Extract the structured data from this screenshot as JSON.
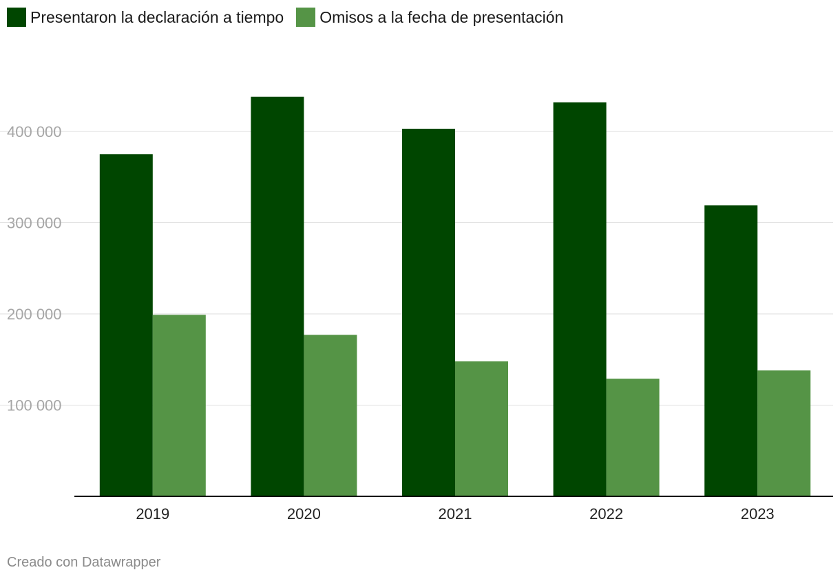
{
  "colors": {
    "series1": "#004600",
    "series2": "#559446",
    "grid": "#dddddd",
    "tick": "#a6a6a6",
    "axis": "#000000",
    "xlabel": "#222222"
  },
  "footer": "Creado con Datawrapper",
  "chart_data": {
    "type": "bar",
    "categories": [
      "2019",
      "2020",
      "2021",
      "2022",
      "2023"
    ],
    "series": [
      {
        "name": "Presentaron la declaración a tiempo",
        "values": [
          375000,
          438000,
          403000,
          432000,
          319000
        ]
      },
      {
        "name": "Omisos a la fecha de presentación",
        "values": [
          199000,
          177000,
          148000,
          129000,
          138000
        ]
      }
    ],
    "yticks": [
      100000,
      200000,
      300000,
      400000
    ],
    "ytick_labels": [
      "100 000",
      "200 000",
      "300 000",
      "400 000"
    ],
    "ylim": [
      0,
      480000
    ],
    "title": "",
    "xlabel": "",
    "ylabel": "",
    "grid": true,
    "legend": "top-left"
  }
}
